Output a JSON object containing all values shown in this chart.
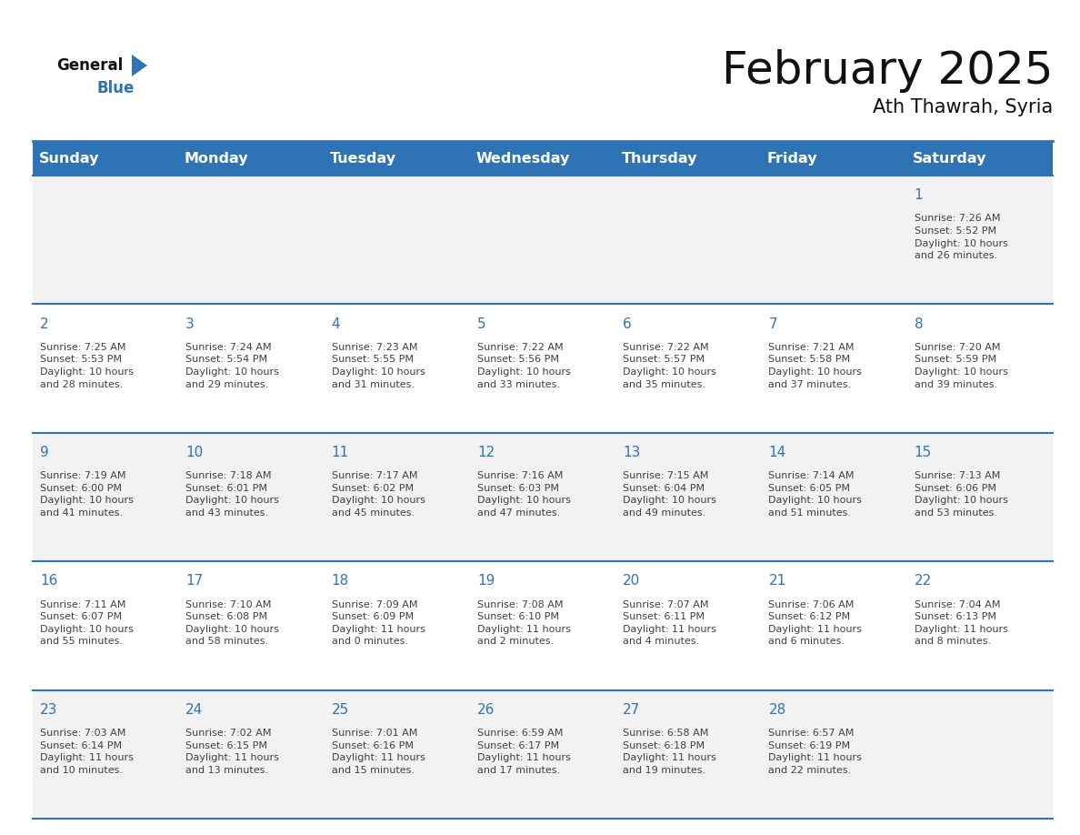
{
  "title": "February 2025",
  "subtitle": "Ath Thawrah, Syria",
  "header_bg": "#2E74B5",
  "header_text_color": "#FFFFFF",
  "cell_bg_odd": "#F2F2F2",
  "cell_bg_even": "#FFFFFF",
  "day_headers": [
    "Sunday",
    "Monday",
    "Tuesday",
    "Wednesday",
    "Thursday",
    "Friday",
    "Saturday"
  ],
  "days": [
    {
      "day": 1,
      "col": 6,
      "row": 0,
      "sunrise": "7:26 AM",
      "sunset": "5:52 PM",
      "daylight": "10 hours and 26 minutes."
    },
    {
      "day": 2,
      "col": 0,
      "row": 1,
      "sunrise": "7:25 AM",
      "sunset": "5:53 PM",
      "daylight": "10 hours and 28 minutes."
    },
    {
      "day": 3,
      "col": 1,
      "row": 1,
      "sunrise": "7:24 AM",
      "sunset": "5:54 PM",
      "daylight": "10 hours and 29 minutes."
    },
    {
      "day": 4,
      "col": 2,
      "row": 1,
      "sunrise": "7:23 AM",
      "sunset": "5:55 PM",
      "daylight": "10 hours and 31 minutes."
    },
    {
      "day": 5,
      "col": 3,
      "row": 1,
      "sunrise": "7:22 AM",
      "sunset": "5:56 PM",
      "daylight": "10 hours and 33 minutes."
    },
    {
      "day": 6,
      "col": 4,
      "row": 1,
      "sunrise": "7:22 AM",
      "sunset": "5:57 PM",
      "daylight": "10 hours and 35 minutes."
    },
    {
      "day": 7,
      "col": 5,
      "row": 1,
      "sunrise": "7:21 AM",
      "sunset": "5:58 PM",
      "daylight": "10 hours and 37 minutes."
    },
    {
      "day": 8,
      "col": 6,
      "row": 1,
      "sunrise": "7:20 AM",
      "sunset": "5:59 PM",
      "daylight": "10 hours and 39 minutes."
    },
    {
      "day": 9,
      "col": 0,
      "row": 2,
      "sunrise": "7:19 AM",
      "sunset": "6:00 PM",
      "daylight": "10 hours and 41 minutes."
    },
    {
      "day": 10,
      "col": 1,
      "row": 2,
      "sunrise": "7:18 AM",
      "sunset": "6:01 PM",
      "daylight": "10 hours and 43 minutes."
    },
    {
      "day": 11,
      "col": 2,
      "row": 2,
      "sunrise": "7:17 AM",
      "sunset": "6:02 PM",
      "daylight": "10 hours and 45 minutes."
    },
    {
      "day": 12,
      "col": 3,
      "row": 2,
      "sunrise": "7:16 AM",
      "sunset": "6:03 PM",
      "daylight": "10 hours and 47 minutes."
    },
    {
      "day": 13,
      "col": 4,
      "row": 2,
      "sunrise": "7:15 AM",
      "sunset": "6:04 PM",
      "daylight": "10 hours and 49 minutes."
    },
    {
      "day": 14,
      "col": 5,
      "row": 2,
      "sunrise": "7:14 AM",
      "sunset": "6:05 PM",
      "daylight": "10 hours and 51 minutes."
    },
    {
      "day": 15,
      "col": 6,
      "row": 2,
      "sunrise": "7:13 AM",
      "sunset": "6:06 PM",
      "daylight": "10 hours and 53 minutes."
    },
    {
      "day": 16,
      "col": 0,
      "row": 3,
      "sunrise": "7:11 AM",
      "sunset": "6:07 PM",
      "daylight": "10 hours and 55 minutes."
    },
    {
      "day": 17,
      "col": 1,
      "row": 3,
      "sunrise": "7:10 AM",
      "sunset": "6:08 PM",
      "daylight": "10 hours and 58 minutes."
    },
    {
      "day": 18,
      "col": 2,
      "row": 3,
      "sunrise": "7:09 AM",
      "sunset": "6:09 PM",
      "daylight": "11 hours and 0 minutes."
    },
    {
      "day": 19,
      "col": 3,
      "row": 3,
      "sunrise": "7:08 AM",
      "sunset": "6:10 PM",
      "daylight": "11 hours and 2 minutes."
    },
    {
      "day": 20,
      "col": 4,
      "row": 3,
      "sunrise": "7:07 AM",
      "sunset": "6:11 PM",
      "daylight": "11 hours and 4 minutes."
    },
    {
      "day": 21,
      "col": 5,
      "row": 3,
      "sunrise": "7:06 AM",
      "sunset": "6:12 PM",
      "daylight": "11 hours and 6 minutes."
    },
    {
      "day": 22,
      "col": 6,
      "row": 3,
      "sunrise": "7:04 AM",
      "sunset": "6:13 PM",
      "daylight": "11 hours and 8 minutes."
    },
    {
      "day": 23,
      "col": 0,
      "row": 4,
      "sunrise": "7:03 AM",
      "sunset": "6:14 PM",
      "daylight": "11 hours and 10 minutes."
    },
    {
      "day": 24,
      "col": 1,
      "row": 4,
      "sunrise": "7:02 AM",
      "sunset": "6:15 PM",
      "daylight": "11 hours and 13 minutes."
    },
    {
      "day": 25,
      "col": 2,
      "row": 4,
      "sunrise": "7:01 AM",
      "sunset": "6:16 PM",
      "daylight": "11 hours and 15 minutes."
    },
    {
      "day": 26,
      "col": 3,
      "row": 4,
      "sunrise": "6:59 AM",
      "sunset": "6:17 PM",
      "daylight": "11 hours and 17 minutes."
    },
    {
      "day": 27,
      "col": 4,
      "row": 4,
      "sunrise": "6:58 AM",
      "sunset": "6:18 PM",
      "daylight": "11 hours and 19 minutes."
    },
    {
      "day": 28,
      "col": 5,
      "row": 4,
      "sunrise": "6:57 AM",
      "sunset": "6:19 PM",
      "daylight": "11 hours and 22 minutes."
    }
  ],
  "num_rows": 5,
  "num_cols": 7,
  "title_fontsize": 36,
  "subtitle_fontsize": 15,
  "header_fontsize": 11.5,
  "day_num_fontsize": 11,
  "cell_text_fontsize": 8.0,
  "line_color": "#2E74B5",
  "text_color": "#404040"
}
